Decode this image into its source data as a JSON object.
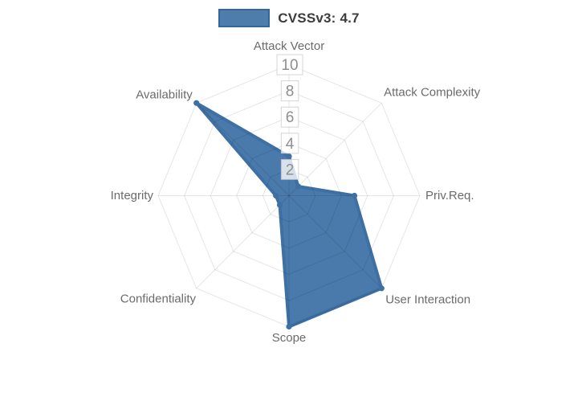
{
  "legend": {
    "label": "CVSSv3: 4.7",
    "swatch_fill": "#4e7dab",
    "swatch_border": "#33669c"
  },
  "chart_data": {
    "type": "radar",
    "title": "CVSSv3: 4.7",
    "categories": [
      "Attack Vector",
      "Attack Complexity",
      "Priv.Req.",
      "User Interaction",
      "Scope",
      "Confidentiality",
      "Integrity",
      "Availability"
    ],
    "series": [
      {
        "name": "CVSSv3: 4.7",
        "values": [
          3,
          1,
          5,
          10,
          10,
          1,
          1,
          10
        ]
      }
    ],
    "ticks": [
      2,
      4,
      6,
      8,
      10
    ],
    "rlim": [
      0,
      10
    ],
    "grid": "on",
    "gridshape": "octagon",
    "legend_position": "top-center",
    "colors": {
      "fill": "#4a7aab",
      "stroke": "#3e70a4",
      "grid": "rgba(0,0,0,0.10)",
      "tick_text": "#8f8f8f",
      "tick_box_fill": "rgba(255,255,255,0.78)",
      "tick_box_border": "rgba(190,190,190,0.65)",
      "axis_label": "#6b6b6b"
    }
  }
}
